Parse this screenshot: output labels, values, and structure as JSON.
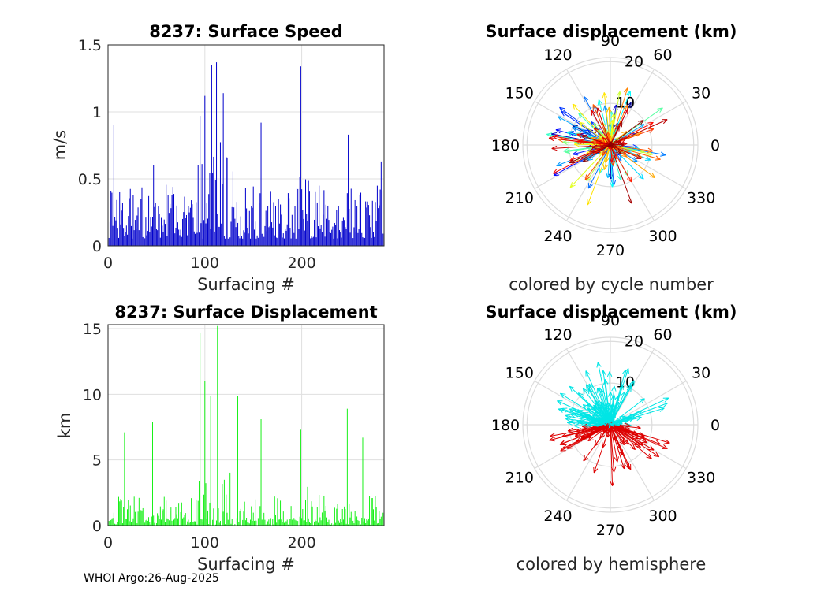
{
  "chart_data": [
    {
      "type": "bar",
      "panel": "speed",
      "title": "8237: Surface Speed",
      "xlabel": "Surfacing #",
      "ylabel": "m/s",
      "xlim": [
        0,
        285
      ],
      "ylim": [
        0,
        1.5
      ],
      "xticks": [
        "0",
        "100",
        "200"
      ],
      "yticks": [
        "0",
        "0.5",
        "1",
        "1.5"
      ],
      "grid": true,
      "color": "#0000cc",
      "highlights": [
        {
          "x": 6,
          "y": 0.9
        },
        {
          "x": 47,
          "y": 0.6
        },
        {
          "x": 95,
          "y": 0.97
        },
        {
          "x": 100,
          "y": 1.12
        },
        {
          "x": 107,
          "y": 1.35
        },
        {
          "x": 112,
          "y": 1.37
        },
        {
          "x": 119,
          "y": 1.14
        },
        {
          "x": 158,
          "y": 0.92
        },
        {
          "x": 199,
          "y": 1.34
        },
        {
          "x": 248,
          "y": 0.83
        },
        {
          "x": 282,
          "y": 0.63
        }
      ]
    },
    {
      "type": "bar",
      "panel": "displacement",
      "title": "8237: Surface Displacement",
      "xlabel": "Surfacing #",
      "ylabel": "km",
      "xlim": [
        0,
        285
      ],
      "ylim": [
        0,
        15.3
      ],
      "xticks": [
        "0",
        "100",
        "200"
      ],
      "yticks": [
        "0",
        "5",
        "10",
        "15"
      ],
      "grid": true,
      "color": "#00ee00",
      "highlights": [
        {
          "x": 17,
          "y": 7.1
        },
        {
          "x": 46,
          "y": 7.9
        },
        {
          "x": 95,
          "y": 14.7
        },
        {
          "x": 100,
          "y": 11.0
        },
        {
          "x": 106,
          "y": 9.9
        },
        {
          "x": 113,
          "y": 15.2
        },
        {
          "x": 134,
          "y": 9.9
        },
        {
          "x": 158,
          "y": 8.1
        },
        {
          "x": 199,
          "y": 7.3
        },
        {
          "x": 247,
          "y": 8.9
        },
        {
          "x": 263,
          "y": 6.7
        },
        {
          "x": 283,
          "y": 1.8
        }
      ]
    },
    {
      "type": "polar",
      "panel": "rose_cycle",
      "title": "Surface displacement (km)",
      "subtitle": "colored by cycle number",
      "angle_labels": [
        "0",
        "30",
        "60",
        "90",
        "120",
        "150",
        "180",
        "210",
        "240",
        "270",
        "300",
        "330"
      ],
      "radial_labels": [
        "10",
        "20"
      ],
      "rmax": 21,
      "color_mode": "cycle"
    },
    {
      "type": "polar",
      "panel": "rose_hemisphere",
      "title": "Surface displacement (km)",
      "subtitle": "colored by hemisphere",
      "angle_labels": [
        "0",
        "30",
        "60",
        "90",
        "120",
        "150",
        "180",
        "210",
        "240",
        "270",
        "300",
        "330"
      ],
      "radial_labels": [
        "10",
        "20"
      ],
      "rmax": 21,
      "color_mode": "hemisphere",
      "colors": {
        "north": "#00e5e5",
        "south": "#dd0000"
      }
    }
  ],
  "footer": "WHOI Argo:26-Aug-2025"
}
